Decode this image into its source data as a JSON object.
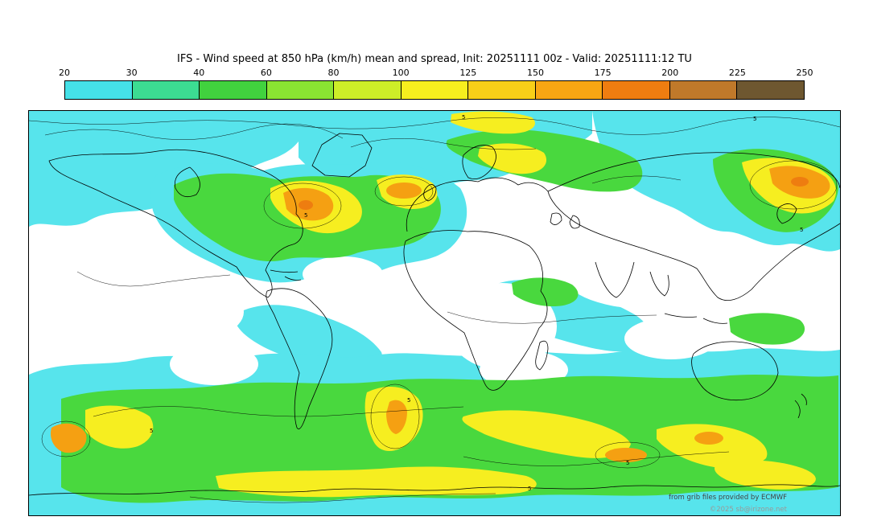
{
  "title": "IFS - Wind speed at 850 hPa (km/h) mean and spread, Init: 20251111 00z - Valid: 20251111:12 TU",
  "colorbar": {
    "tick_labels": [
      "20",
      "30",
      "40",
      "60",
      "80",
      "100",
      "125",
      "150",
      "175",
      "200",
      "225",
      "250"
    ],
    "segments": [
      {
        "range": "20-30",
        "color": "#45e1e8"
      },
      {
        "range": "30-40",
        "color": "#3cdc92"
      },
      {
        "range": "40-60",
        "color": "#41d23e"
      },
      {
        "range": "60-80",
        "color": "#8ae432"
      },
      {
        "range": "80-100",
        "color": "#cdee28"
      },
      {
        "range": "100-125",
        "color": "#f7ef1e"
      },
      {
        "range": "125-150",
        "color": "#f8cf18"
      },
      {
        "range": "150-175",
        "color": "#f8a613"
      },
      {
        "range": "175-200",
        "color": "#ef7d10"
      },
      {
        "range": "200-225",
        "color": "#c0792a"
      },
      {
        "range": "225-250",
        "color": "#6e5730"
      }
    ]
  },
  "map": {
    "fill_colors": {
      "below": "#ffffff",
      "cyan": "#57e4ec",
      "green": "#49d83e",
      "yellow": "#f6ee20",
      "orange": "#f5a012",
      "dark_orange": "#ee7d10"
    },
    "contour_label": "5"
  },
  "credits": {
    "provider": "from grib files provided by ECMWF",
    "copyright": "©2025 sb@irizone.net"
  },
  "chart_data": {
    "type": "heatmap",
    "title": "IFS - Wind speed at 850 hPa (km/h) mean and spread, Init: 20251111 00z - Valid: 20251111:12 TU",
    "variable": "Wind speed at 850 hPa (km/h), ensemble mean (shading) and spread (contours)",
    "init": "20251111 00z",
    "valid": "20251111:12 TU",
    "colorbar_levels": [
      20,
      30,
      40,
      60,
      80,
      100,
      125,
      150,
      175,
      200,
      225,
      250
    ],
    "colorbar_colors": [
      "#45e1e8",
      "#3cdc92",
      "#41d23e",
      "#8ae432",
      "#cdee28",
      "#f7ef1e",
      "#f8cf18",
      "#f8a613",
      "#ef7d10",
      "#c0792a",
      "#6e5730"
    ],
    "spread_contour_label": 5,
    "legend_position": "top"
  }
}
